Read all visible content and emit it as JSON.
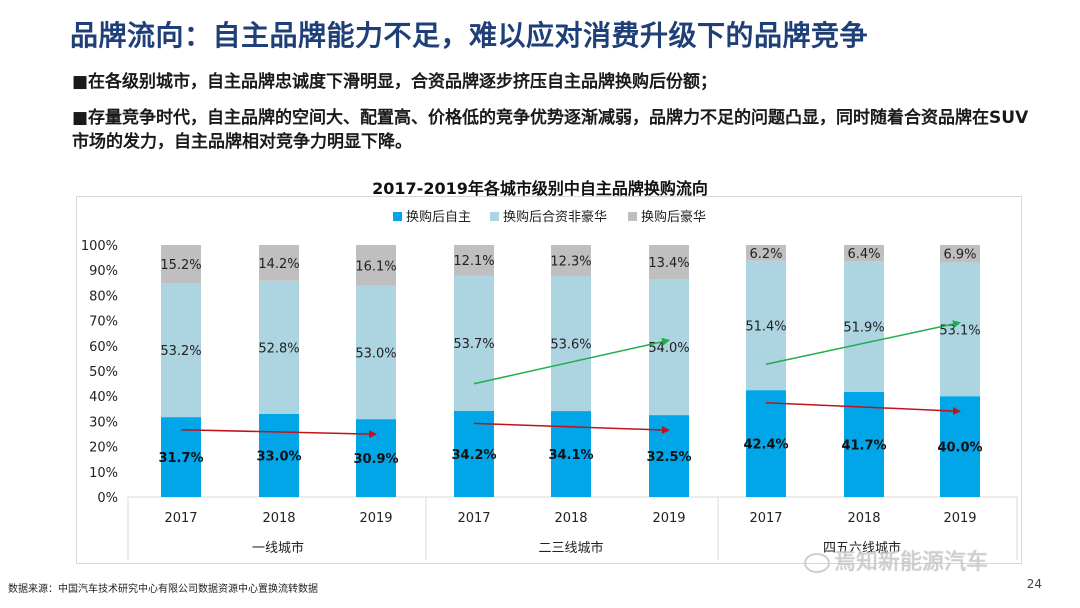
{
  "header": {
    "title": "品牌流向：自主品牌能力不足，难以应对消费升级下的品牌竞争"
  },
  "bullets": [
    "■在各级别城市，自主品牌忠诚度下滑明显，合资品牌逐步挤压自主品牌换购后份额；",
    "■存量竞争时代，自主品牌的空间大、配置高、价格低的竞争优势逐渐减弱，品牌力不足的问题凸显，同时随着合资品牌在SUV市场的发力，自主品牌相对竞争力明显下降。"
  ],
  "footer": {
    "source": "数据来源：中国汽车技术研究中心有限公司数据资源中心置换流转数据",
    "page": "24",
    "watermark": "焉知新能源汽车"
  },
  "colors": {
    "own": "#00a6e8",
    "jv": "#add5e1",
    "lux": "#bfbfbf",
    "up_arrow": "#1fae4b",
    "down_arrow": "#c0121a",
    "title": "#1f3f78"
  },
  "chart_data": {
    "type": "bar",
    "stacked": true,
    "title": "2017-2019年各城市级别中自主品牌换购流向",
    "legend_position": "top",
    "yticks": [
      "0%",
      "10%",
      "20%",
      "30%",
      "40%",
      "50%",
      "60%",
      "70%",
      "80%",
      "90%",
      "100%"
    ],
    "ylim": [
      0,
      100
    ],
    "groups": [
      {
        "name": "一线城市",
        "years": [
          "2017",
          "2018",
          "2019"
        ],
        "own": [
          31.7,
          33.0,
          30.9
        ],
        "jv": [
          53.2,
          52.8,
          53.0
        ],
        "lux": [
          15.2,
          14.2,
          16.1
        ],
        "own_labels": [
          "31.7%",
          "33.0%",
          "30.9%"
        ],
        "jv_labels": [
          "53.2%",
          "52.8%",
          "53.0%"
        ],
        "lux_labels": [
          "15.2%",
          "14.2%",
          "16.1%"
        ],
        "trend_up": false
      },
      {
        "name": "二三线城市",
        "years": [
          "2017",
          "2018",
          "2019"
        ],
        "own": [
          34.2,
          34.1,
          32.5
        ],
        "jv": [
          53.7,
          53.6,
          54.0
        ],
        "lux": [
          12.1,
          12.3,
          13.4
        ],
        "own_labels": [
          "34.2%",
          "34.1%",
          "32.5%"
        ],
        "jv_labels": [
          "53.7%",
          "53.6%",
          "54.0%"
        ],
        "lux_labels": [
          "12.1%",
          "12.3%",
          "13.4%"
        ],
        "trend_up": true
      },
      {
        "name": "四五六线城市",
        "years": [
          "2017",
          "2018",
          "2019"
        ],
        "own": [
          42.4,
          41.7,
          40.0
        ],
        "jv": [
          51.4,
          51.9,
          53.1
        ],
        "lux": [
          6.2,
          6.4,
          6.9
        ],
        "own_labels": [
          "42.4%",
          "41.7%",
          "40.0%"
        ],
        "jv_labels": [
          "51.4%",
          "51.9%",
          "53.1%"
        ],
        "lux_labels": [
          "6.2%",
          "6.4%",
          "6.9%"
        ],
        "trend_up": true
      }
    ],
    "series": [
      {
        "name": "换购后自主"
      },
      {
        "name": "换购后合资非豪华"
      },
      {
        "name": "换购后豪华"
      }
    ]
  }
}
